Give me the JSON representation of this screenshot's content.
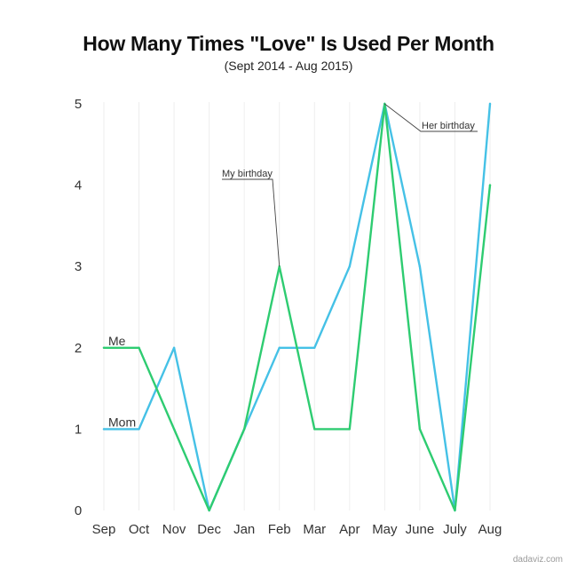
{
  "chart_data": {
    "type": "line",
    "title": "How Many Times \"Love\" Is Used Per Month",
    "subtitle": "(Sept 2014 - Aug 2015)",
    "categories": [
      "Sep",
      "Oct",
      "Nov",
      "Dec",
      "Jan",
      "Feb",
      "Mar",
      "Apr",
      "May",
      "June",
      "July",
      "Aug"
    ],
    "ylim": [
      0,
      5
    ],
    "yticks": [
      0,
      1,
      2,
      3,
      4,
      5
    ],
    "xlabel": "",
    "ylabel": "",
    "grid": "vertical",
    "series": [
      {
        "name": "Me",
        "color": "#2ecc71",
        "values": [
          2,
          2,
          1,
          0,
          1,
          3,
          1,
          1,
          5,
          1,
          0,
          4
        ]
      },
      {
        "name": "Mom",
        "color": "#45c1e6",
        "values": [
          1,
          1,
          2,
          0,
          1,
          2,
          2,
          3,
          5,
          3,
          0,
          5
        ]
      }
    ],
    "annotations": [
      {
        "text": "My birthday",
        "x": "Feb",
        "y": 3
      },
      {
        "text": "Her birthday",
        "x": "May",
        "y": 5
      }
    ]
  },
  "footer": {
    "source": "dadaviz.com"
  }
}
